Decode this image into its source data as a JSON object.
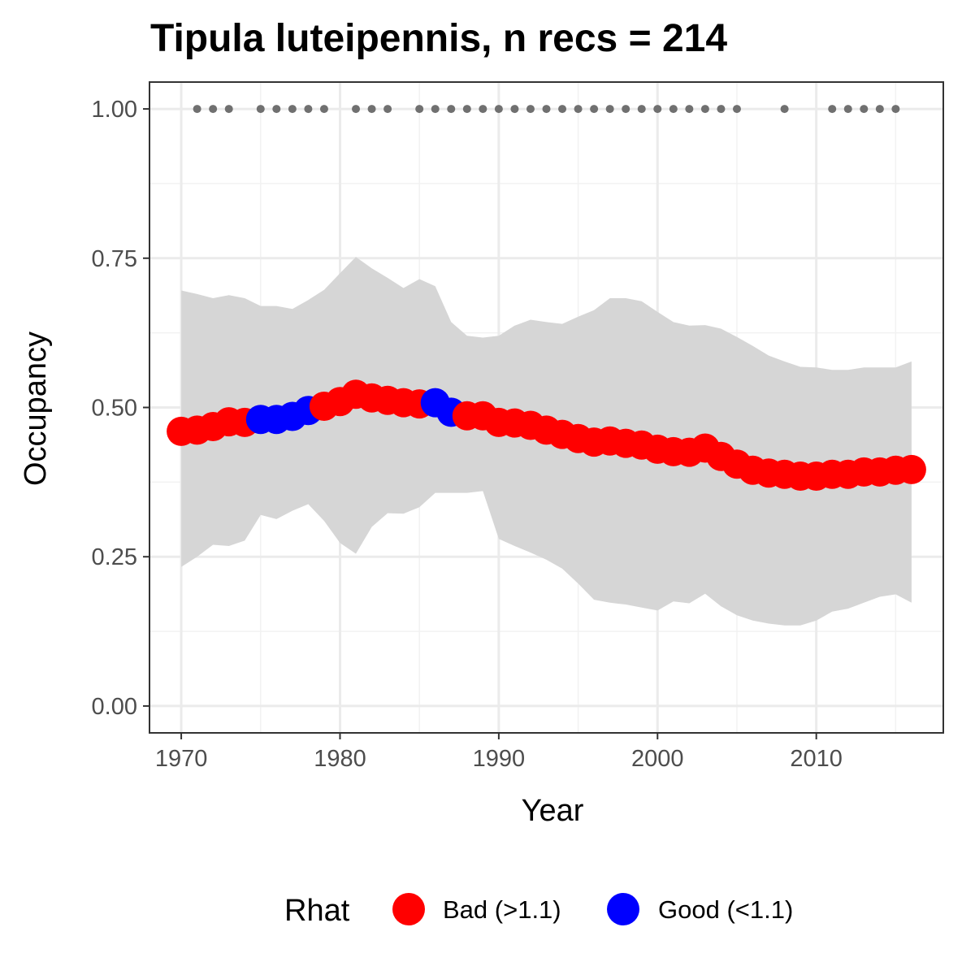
{
  "chart_data": {
    "type": "line",
    "title": "Tipula luteipennis, n recs = 214",
    "xlabel": "Year",
    "ylabel": "Occupancy",
    "xlim": [
      1968,
      2018
    ],
    "ylim": [
      -0.045,
      1.045
    ],
    "x_ticks": [
      1970,
      1980,
      1990,
      2000,
      2010
    ],
    "x_tick_labels": [
      "1970",
      "1980",
      "1990",
      "2000",
      "2010"
    ],
    "y_ticks": [
      0,
      0.25,
      0.5,
      0.75,
      1.0
    ],
    "y_tick_labels": [
      "0.00",
      "0.25",
      "0.50",
      "0.75",
      "1.00"
    ],
    "grid": true,
    "legend": {
      "title": "Rhat",
      "placement": "bottom",
      "entries": [
        {
          "label": "Bad (>1.1)",
          "color": "#ff0000"
        },
        {
          "label": "Good (<1.1)",
          "color": "#0000ff"
        }
      ]
    },
    "colors": {
      "bad": "#ff0000",
      "good": "#0000ff",
      "ribbon": "#d6d6d6",
      "record_dot": "#707070"
    },
    "years": [
      1970,
      1971,
      1972,
      1973,
      1974,
      1975,
      1976,
      1977,
      1978,
      1979,
      1980,
      1981,
      1982,
      1983,
      1984,
      1985,
      1986,
      1987,
      1988,
      1989,
      1990,
      1991,
      1992,
      1993,
      1994,
      1995,
      1996,
      1997,
      1998,
      1999,
      2000,
      2001,
      2002,
      2003,
      2004,
      2005,
      2006,
      2007,
      2008,
      2009,
      2010,
      2011,
      2012,
      2013,
      2014,
      2015,
      2016
    ],
    "occupancy": [
      0.46,
      0.462,
      0.468,
      0.476,
      0.475,
      0.48,
      0.48,
      0.485,
      0.495,
      0.502,
      0.51,
      0.522,
      0.516,
      0.512,
      0.508,
      0.506,
      0.508,
      0.492,
      0.486,
      0.486,
      0.475,
      0.474,
      0.47,
      0.462,
      0.455,
      0.448,
      0.442,
      0.444,
      0.44,
      0.437,
      0.43,
      0.426,
      0.425,
      0.432,
      0.418,
      0.405,
      0.395,
      0.39,
      0.388,
      0.385,
      0.385,
      0.388,
      0.388,
      0.392,
      0.392,
      0.395,
      0.396
    ],
    "rhat_status": [
      "bad",
      "bad",
      "bad",
      "bad",
      "bad",
      "good",
      "good",
      "good",
      "good",
      "bad",
      "bad",
      "bad",
      "bad",
      "bad",
      "bad",
      "bad",
      "good",
      "good",
      "bad",
      "bad",
      "bad",
      "bad",
      "bad",
      "bad",
      "bad",
      "bad",
      "bad",
      "bad",
      "bad",
      "bad",
      "bad",
      "bad",
      "bad",
      "bad",
      "bad",
      "bad",
      "bad",
      "bad",
      "bad",
      "bad",
      "bad",
      "bad",
      "bad",
      "bad",
      "bad",
      "bad",
      "bad"
    ],
    "upper_ci": [
      0.696,
      0.69,
      0.683,
      0.688,
      0.683,
      0.67,
      0.67,
      0.665,
      0.68,
      0.697,
      0.725,
      0.752,
      0.733,
      0.717,
      0.7,
      0.715,
      0.703,
      0.643,
      0.62,
      0.617,
      0.62,
      0.637,
      0.647,
      0.643,
      0.64,
      0.652,
      0.663,
      0.683,
      0.683,
      0.678,
      0.66,
      0.643,
      0.637,
      0.638,
      0.632,
      0.618,
      0.603,
      0.587,
      0.577,
      0.568,
      0.567,
      0.563,
      0.563,
      0.567,
      0.567,
      0.567,
      0.577
    ],
    "lower_ci": [
      0.233,
      0.25,
      0.27,
      0.268,
      0.277,
      0.32,
      0.313,
      0.327,
      0.338,
      0.31,
      0.273,
      0.255,
      0.3,
      0.323,
      0.322,
      0.333,
      0.357,
      0.357,
      0.357,
      0.36,
      0.28,
      0.268,
      0.257,
      0.245,
      0.23,
      0.205,
      0.178,
      0.173,
      0.17,
      0.165,
      0.16,
      0.175,
      0.172,
      0.188,
      0.167,
      0.152,
      0.143,
      0.138,
      0.135,
      0.135,
      0.143,
      0.158,
      0.163,
      0.173,
      0.183,
      0.187,
      0.173
    ],
    "record_years": [
      1971,
      1972,
      1973,
      1975,
      1976,
      1977,
      1978,
      1979,
      1981,
      1982,
      1983,
      1985,
      1986,
      1987,
      1988,
      1989,
      1990,
      1991,
      1992,
      1993,
      1994,
      1995,
      1996,
      1997,
      1998,
      1999,
      2000,
      2001,
      2002,
      2003,
      2004,
      2005,
      2008,
      2011,
      2012,
      2013,
      2014,
      2015
    ],
    "record_value": 1.0
  }
}
